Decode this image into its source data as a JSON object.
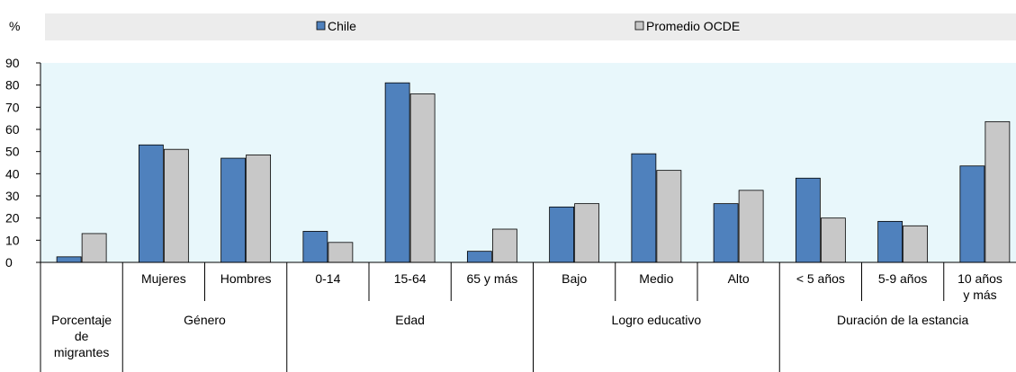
{
  "chart_data": {
    "type": "bar",
    "ylabel": "%",
    "ylim": [
      0,
      90
    ],
    "yticks": [
      0,
      10,
      20,
      30,
      40,
      50,
      60,
      70,
      80,
      90
    ],
    "grid": false,
    "legend_position": "top",
    "categories": [
      "",
      "Mujeres",
      "Hombres",
      "0-14",
      "15-64",
      "65 y más",
      "Bajo",
      "Medio",
      "Alto",
      "< 5 años",
      "5-9 años",
      "10 años y más"
    ],
    "groups": [
      {
        "label": "Porcentaje de migrantes",
        "start": 0,
        "end": 0
      },
      {
        "label": "Género",
        "start": 1,
        "end": 2
      },
      {
        "label": "Edad",
        "start": 3,
        "end": 5
      },
      {
        "label": "Logro educativo",
        "start": 6,
        "end": 8
      },
      {
        "label": "Duración de la estancia",
        "start": 9,
        "end": 11
      }
    ],
    "series": [
      {
        "name": "Chile",
        "color": "#4f81bd",
        "values": [
          2.5,
          53,
          47,
          14,
          81,
          5,
          25,
          49,
          26.5,
          38,
          18.5,
          43.5
        ]
      },
      {
        "name": "Promedio OCDE",
        "color": "#c8c8c8",
        "values": [
          13,
          51,
          48.5,
          9,
          76,
          15,
          26.5,
          41.5,
          32.5,
          20,
          16.5,
          63.5
        ]
      }
    ],
    "colors": {
      "plot_background": "#e8f7fb",
      "legend_background": "#ececec"
    }
  }
}
